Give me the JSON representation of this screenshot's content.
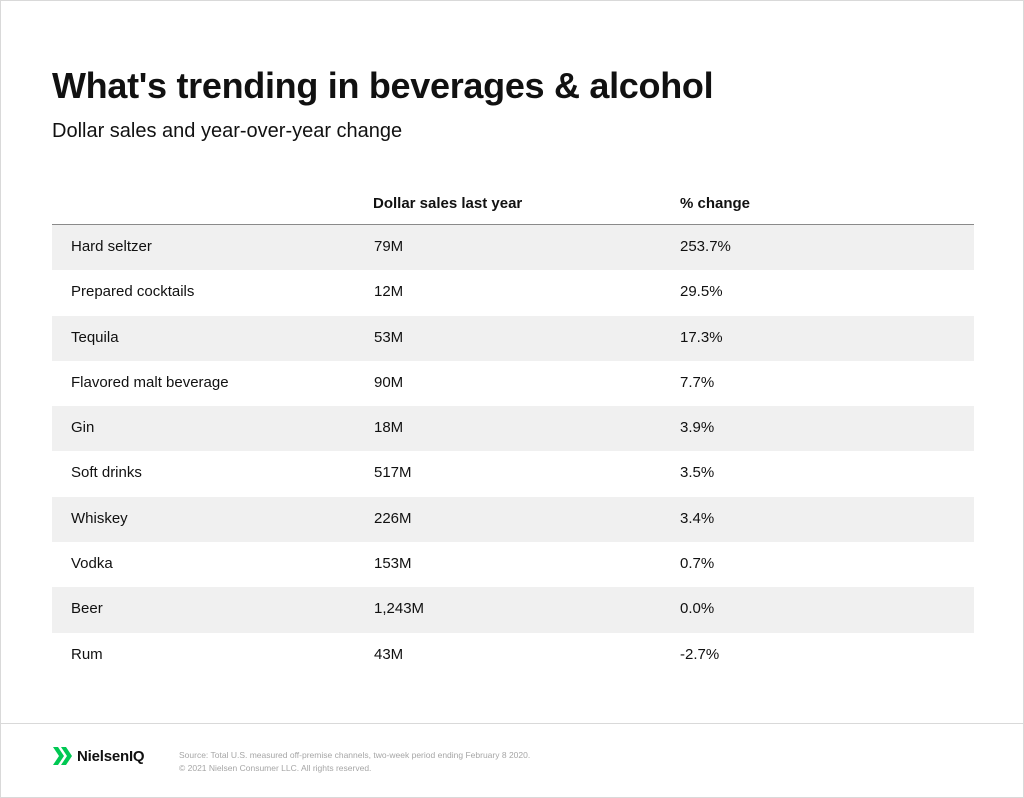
{
  "page": {
    "title": "What's trending in beverages & alcohol",
    "subtitle": "Dollar sales and year-over-year change"
  },
  "chart_data": {
    "type": "table",
    "columns": [
      "",
      "Dollar sales last year",
      "% change"
    ],
    "rows": [
      {
        "category": "Hard seltzer",
        "sales": "79M",
        "change": "253.7%"
      },
      {
        "category": "Prepared cocktails",
        "sales": "12M",
        "change": "29.5%"
      },
      {
        "category": "Tequila",
        "sales": "53M",
        "change": "17.3%"
      },
      {
        "category": "Flavored malt beverage",
        "sales": "90M",
        "change": "7.7%"
      },
      {
        "category": "Gin",
        "sales": "18M",
        "change": "3.9%"
      },
      {
        "category": "Soft drinks",
        "sales": "517M",
        "change": "3.5%"
      },
      {
        "category": "Whiskey",
        "sales": "226M",
        "change": "3.4%"
      },
      {
        "category": "Vodka",
        "sales": "153M",
        "change": "0.7%"
      },
      {
        "category": "Beer",
        "sales": "1,243M",
        "change": "0.0%"
      },
      {
        "category": "Rum",
        "sales": "43M",
        "change": "-2.7%"
      }
    ],
    "row_shading": "alternating"
  },
  "footer": {
    "logo_text": "NielsenIQ",
    "source_line1": "Source: Total U.S. measured off-premise channels, two-week period ending February 8 2020.",
    "source_line2": "© 2021 Nielsen Consumer LLC. All rights reserved."
  },
  "colors": {
    "logo_green": "#00c853",
    "row_shade": "#f0f0f0",
    "text": "#111111",
    "source_text": "#a6a6a6"
  },
  "icons": {
    "logo_mark": "nielseniq-logo-mark"
  }
}
